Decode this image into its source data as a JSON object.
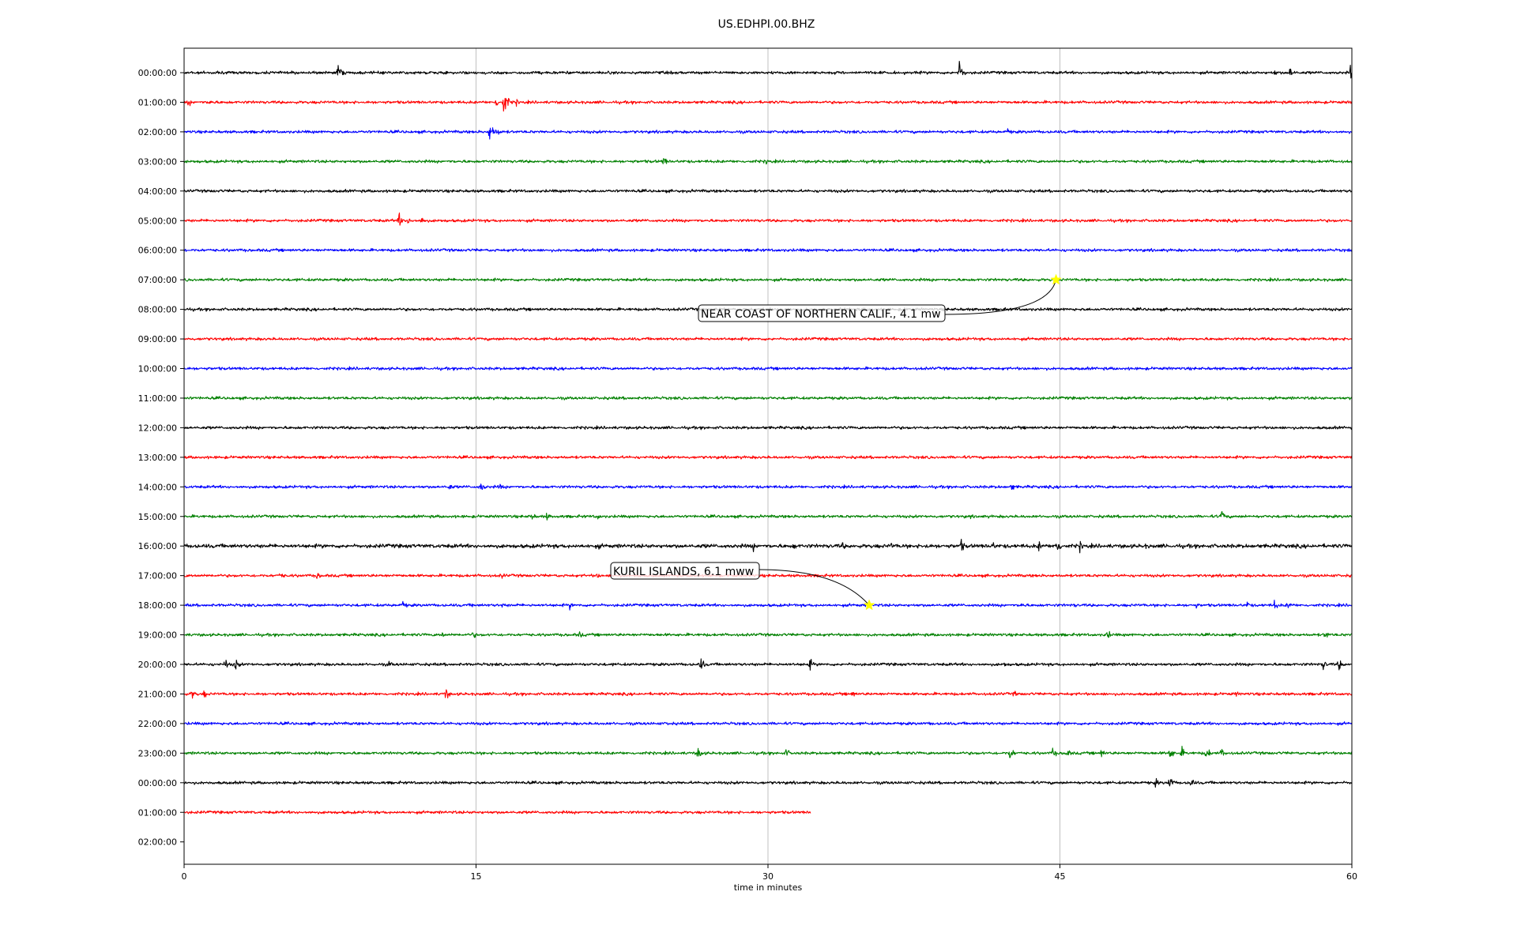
{
  "chart_data": {
    "type": "line",
    "title": "US.EDHPI.00.BHZ",
    "xlabel": "time in minutes",
    "ylabel": "",
    "xlim": [
      0,
      60
    ],
    "x_ticks": [
      0,
      15,
      30,
      45,
      60
    ],
    "grid": "vertical",
    "row_labels": [
      "00:00:00",
      "01:00:00",
      "02:00:00",
      "03:00:00",
      "04:00:00",
      "05:00:00",
      "06:00:00",
      "07:00:00",
      "08:00:00",
      "09:00:00",
      "10:00:00",
      "11:00:00",
      "12:00:00",
      "13:00:00",
      "14:00:00",
      "15:00:00",
      "16:00:00",
      "17:00:00",
      "18:00:00",
      "19:00:00",
      "20:00:00",
      "21:00:00",
      "22:00:00",
      "23:00:00",
      "00:00:00",
      "01:00:00",
      "02:00:00"
    ],
    "row_colors": [
      "#000000",
      "#ff0000",
      "#0000ff",
      "#008000"
    ],
    "traces": [
      {
        "row": 0,
        "end": 60,
        "noise": 2.2,
        "events": [
          [
            1.7,
            5
          ],
          [
            7.9,
            15
          ],
          [
            12.4,
            5
          ],
          [
            39.8,
            20
          ],
          [
            56,
            7
          ],
          [
            56.8,
            12
          ],
          [
            59.9,
            14
          ]
        ]
      },
      {
        "row": 1,
        "end": 60,
        "noise": 2.2,
        "events": [
          [
            0.2,
            7
          ],
          [
            1.3,
            8
          ],
          [
            16,
            10
          ],
          [
            16.4,
            25
          ],
          [
            17,
            8
          ]
        ]
      },
      {
        "row": 2,
        "end": 60,
        "noise": 2.2,
        "events": [
          [
            15.7,
            20
          ],
          [
            16.1,
            8
          ],
          [
            42.3,
            7
          ]
        ]
      },
      {
        "row": 3,
        "end": 60,
        "noise": 2.2,
        "events": [
          [
            24.6,
            10
          ],
          [
            29.9,
            6
          ],
          [
            59,
            4
          ]
        ]
      },
      {
        "row": 4,
        "end": 60,
        "noise": 2.2,
        "events": []
      },
      {
        "row": 5,
        "end": 60,
        "noise": 2.2,
        "events": [
          [
            9.7,
            4
          ],
          [
            11,
            14
          ],
          [
            11.5,
            10
          ],
          [
            12.2,
            9
          ]
        ]
      },
      {
        "row": 6,
        "end": 60,
        "noise": 2.2,
        "events": []
      },
      {
        "row": 7,
        "end": 60,
        "noise": 2.2,
        "events": []
      },
      {
        "row": 8,
        "end": 60,
        "noise": 2.2,
        "events": []
      },
      {
        "row": 9,
        "end": 60,
        "noise": 2.2,
        "events": []
      },
      {
        "row": 10,
        "end": 60,
        "noise": 2.2,
        "events": []
      },
      {
        "row": 11,
        "end": 60,
        "noise": 2.2,
        "events": []
      },
      {
        "row": 12,
        "end": 60,
        "noise": 2.2,
        "events": []
      },
      {
        "row": 13,
        "end": 60,
        "noise": 2.2,
        "events": []
      },
      {
        "row": 14,
        "end": 60,
        "noise": 2.2,
        "events": [
          [
            13.6,
            8
          ],
          [
            15.2,
            12
          ],
          [
            16.2,
            7
          ],
          [
            42.5,
            8
          ]
        ]
      },
      {
        "row": 15,
        "end": 60,
        "noise": 2.2,
        "events": [
          [
            17.8,
            9
          ],
          [
            18.6,
            8
          ],
          [
            21.2,
            7
          ],
          [
            40.4,
            4
          ],
          [
            53.3,
            12
          ]
        ]
      },
      {
        "row": 16,
        "end": 60,
        "noise": 3.0,
        "events": [
          [
            21.3,
            6
          ],
          [
            26.8,
            6
          ],
          [
            29.2,
            9
          ],
          [
            31.3,
            8
          ],
          [
            33.8,
            8
          ],
          [
            36.3,
            7
          ],
          [
            38.1,
            8
          ],
          [
            39.9,
            12
          ],
          [
            41.5,
            9
          ],
          [
            43.9,
            11
          ],
          [
            44.8,
            18
          ],
          [
            46,
            10
          ],
          [
            49.3,
            7
          ]
        ]
      },
      {
        "row": 17,
        "end": 60,
        "noise": 2.2,
        "events": [
          [
            4.9,
            9
          ],
          [
            6.8,
            8
          ],
          [
            16.3,
            7
          ],
          [
            21.2,
            6
          ]
        ]
      },
      {
        "row": 18,
        "end": 60,
        "noise": 2.2,
        "events": [
          [
            11.2,
            9
          ],
          [
            14.8,
            5
          ],
          [
            16.3,
            6
          ],
          [
            19.8,
            7
          ],
          [
            43,
            8
          ],
          [
            45.7,
            5
          ],
          [
            52,
            5
          ],
          [
            54.6,
            8
          ],
          [
            56,
            10
          ],
          [
            56.7,
            9
          ]
        ]
      },
      {
        "row": 19,
        "end": 60,
        "noise": 2.2,
        "events": [
          [
            13.2,
            8
          ],
          [
            14.8,
            8
          ],
          [
            20.3,
            7
          ],
          [
            47.4,
            10
          ],
          [
            58.6,
            10
          ]
        ]
      },
      {
        "row": 20,
        "end": 60,
        "noise": 2.2,
        "events": [
          [
            2.1,
            10
          ],
          [
            2.6,
            12
          ],
          [
            10.5,
            7
          ],
          [
            26.5,
            14
          ],
          [
            32.1,
            12
          ],
          [
            42.1,
            6
          ],
          [
            58.5,
            10
          ],
          [
            59.3,
            12
          ]
        ]
      },
      {
        "row": 21,
        "end": 60,
        "noise": 2.2,
        "events": [
          [
            0.4,
            10
          ],
          [
            1,
            8
          ],
          [
            13.4,
            12
          ],
          [
            34.3,
            8
          ],
          [
            42.6,
            7
          ],
          [
            54,
            6
          ]
        ]
      },
      {
        "row": 22,
        "end": 60,
        "noise": 2.2,
        "events": [
          [
            24.8,
            4
          ],
          [
            38.3,
            5
          ]
        ]
      },
      {
        "row": 23,
        "end": 60,
        "noise": 2.2,
        "events": [
          [
            26.4,
            12
          ],
          [
            30.9,
            9
          ],
          [
            42.4,
            14
          ],
          [
            44.6,
            10
          ],
          [
            45.3,
            10
          ],
          [
            47.1,
            9
          ],
          [
            50.6,
            14
          ],
          [
            51.2,
            12
          ],
          [
            52.5,
            13
          ],
          [
            53.3,
            10
          ]
        ]
      },
      {
        "row": 24,
        "end": 60,
        "noise": 2.2,
        "events": [
          [
            49.9,
            8
          ],
          [
            50.6,
            14
          ],
          [
            51.7,
            10
          ]
        ]
      },
      {
        "row": 25,
        "end": 32.2,
        "noise": 2.2,
        "events": []
      }
    ],
    "annotations": [
      {
        "text": "NEAR COAST OF NORTHERN CALIF., 4.1 mw",
        "row": 7,
        "x": 44.8
      },
      {
        "text": "KURIL ISLANDS, 6.1 mww",
        "row": 18,
        "x": 35.2
      }
    ]
  }
}
